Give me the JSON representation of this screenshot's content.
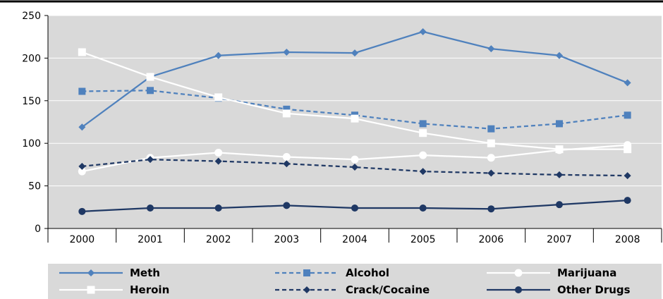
{
  "chart_data": {
    "type": "line",
    "title": "",
    "xlabel": "",
    "ylabel": "",
    "x": [
      "2000",
      "2001",
      "2002",
      "2003",
      "2004",
      "2005",
      "2006",
      "2007",
      "2008"
    ],
    "ylim": [
      0,
      250
    ],
    "yticks": [
      "0",
      "50",
      "100",
      "150",
      "200",
      "250"
    ],
    "grid": true,
    "legend_placement": "bottom",
    "plot_background": "#d9d9d9",
    "series": [
      {
        "name": "Meth",
        "values": [
          119,
          178,
          203,
          207,
          206,
          231,
          211,
          203,
          171
        ],
        "color": "#4f81bd",
        "dash": "solid",
        "marker": "diamond"
      },
      {
        "name": "Alcohol",
        "values": [
          161,
          162,
          153,
          140,
          133,
          123,
          117,
          123,
          133
        ],
        "color": "#4f81bd",
        "dash": "dashed",
        "marker": "square"
      },
      {
        "name": "Marijuana",
        "values": [
          67,
          83,
          89,
          84,
          81,
          86,
          83,
          92,
          98
        ],
        "color": "#ffffff",
        "dash": "solid",
        "marker": "circle"
      },
      {
        "name": "Heroin",
        "values": [
          207,
          178,
          154,
          135,
          129,
          112,
          100,
          93,
          93
        ],
        "color": "#ffffff",
        "dash": "solid",
        "marker": "square"
      },
      {
        "name": "Crack/Cocaine",
        "values": [
          73,
          81,
          79,
          76,
          72,
          67,
          65,
          63,
          62
        ],
        "color": "#1f3864",
        "dash": "dashed",
        "marker": "diamond"
      },
      {
        "name": "Other Drugs",
        "values": [
          20,
          24,
          24,
          27,
          24,
          24,
          23,
          28,
          33
        ],
        "color": "#1f3864",
        "dash": "solid",
        "marker": "circle"
      }
    ]
  }
}
